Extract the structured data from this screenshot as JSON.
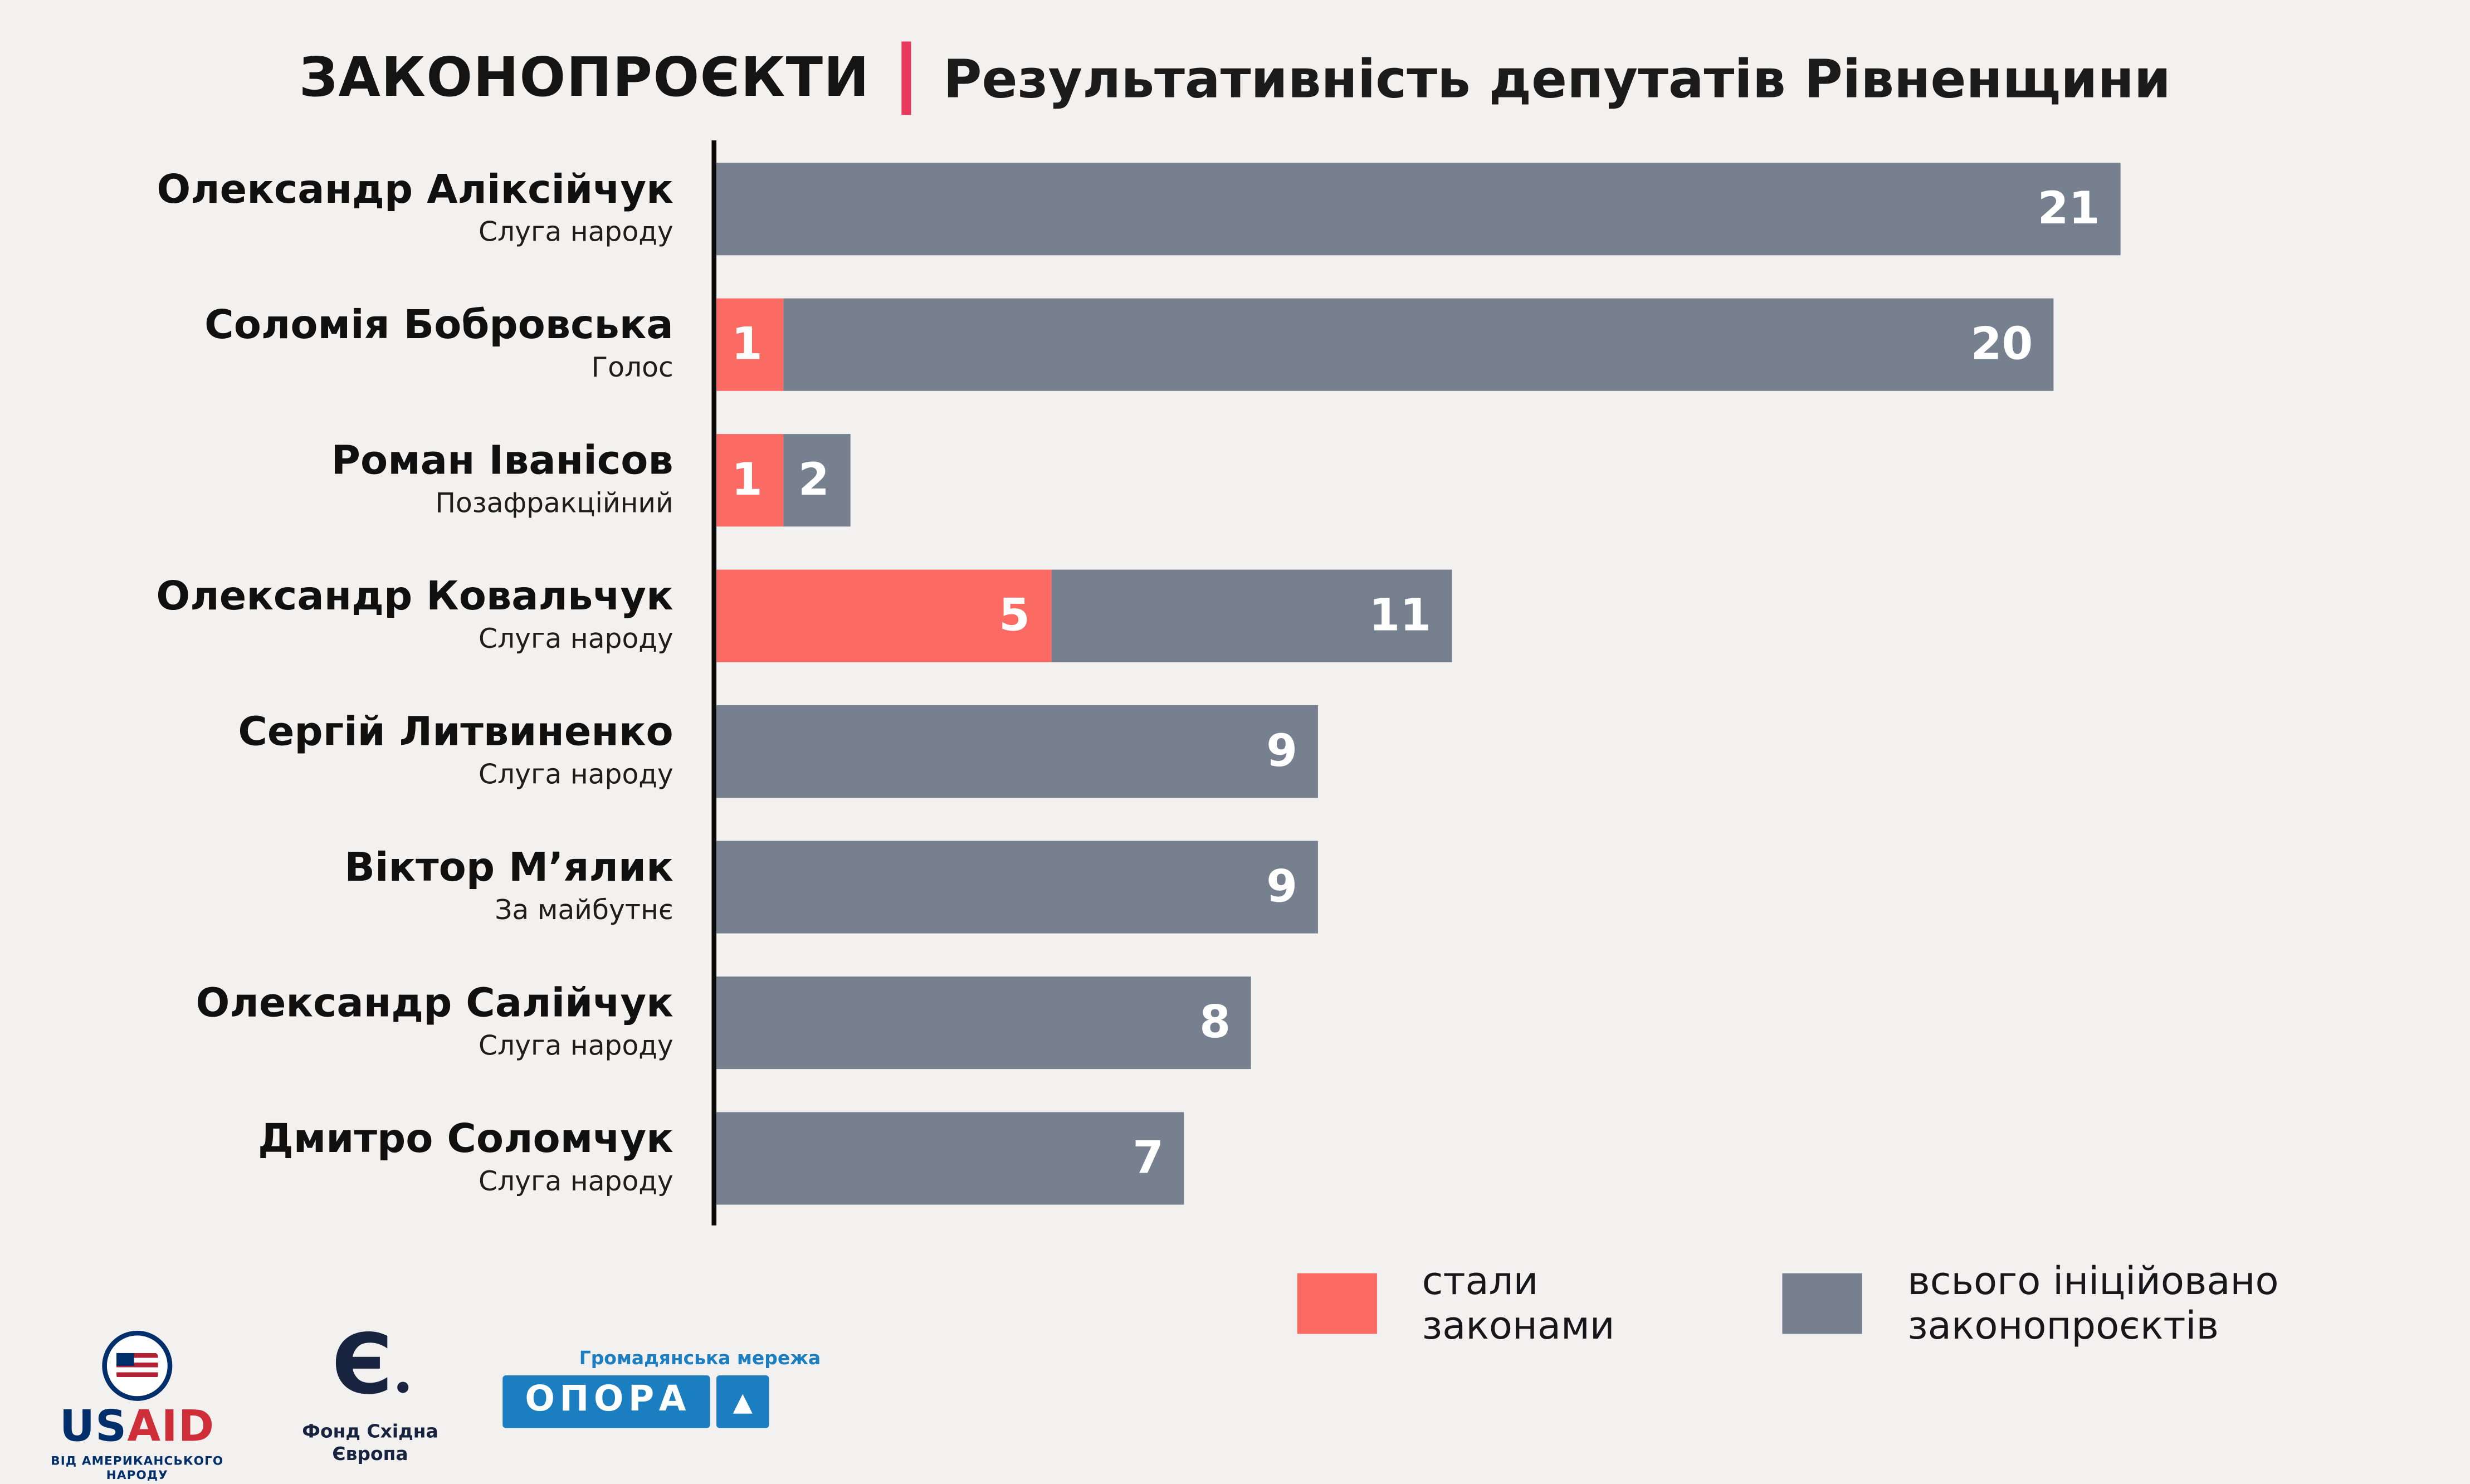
{
  "header": {
    "title_left": "ЗАКОНОПРОЄКТИ",
    "title_right": "Результативність депутатів Рівненщини"
  },
  "chart_data": {
    "type": "bar",
    "orientation": "horizontal",
    "stacked": true,
    "title": "ЗАКОНОПРОЄКТИ | Результативність депутатів Рівненщини",
    "xlim": [
      0,
      21
    ],
    "grid": false,
    "legend_position": "bottom-right",
    "categories": [
      "Олександр Аліксійчук",
      "Соломія Бобровська",
      "Роман Іванісов",
      "Олександр Ковальчук",
      "Сергій Литвиненко",
      "Віктор М’ялик",
      "Олександр Салійчук",
      "Дмитро Соломчук"
    ],
    "series": [
      {
        "name": "стали законами",
        "values": [
          0,
          1,
          1,
          5,
          0,
          0,
          0,
          0
        ]
      },
      {
        "name": "всього ініційовано законопроєктів",
        "values": [
          21,
          20,
          2,
          11,
          9,
          9,
          8,
          7
        ]
      }
    ],
    "rows": [
      {
        "name": "Олександр Аліксійчук",
        "party": "Слуга народу",
        "laws": 0,
        "total": 21
      },
      {
        "name": "Соломія Бобровська",
        "party": "Голос",
        "laws": 1,
        "total": 20
      },
      {
        "name": "Роман Іванісов",
        "party": "Позафракційний",
        "laws": 1,
        "total": 2
      },
      {
        "name": "Олександр Ковальчук",
        "party": "Слуга народу",
        "laws": 5,
        "total": 11
      },
      {
        "name": "Сергій Литвиненко",
        "party": "Слуга народу",
        "laws": 0,
        "total": 9
      },
      {
        "name": "Віктор М’ялик",
        "party": "За майбутнє",
        "laws": 0,
        "total": 9
      },
      {
        "name": "Олександр Салійчук",
        "party": "Слуга народу",
        "laws": 0,
        "total": 8
      },
      {
        "name": "Дмитро Соломчук",
        "party": "Слуга народу",
        "laws": 0,
        "total": 7
      }
    ],
    "series_colors": {
      "laws": "#fb6a63",
      "total": "#76808f"
    },
    "legend": [
      {
        "label": "стали законами",
        "color": "#fb6a63"
      },
      {
        "label": "всього ініційовано законопроєктів",
        "color": "#76808f"
      }
    ]
  },
  "footer": {
    "usaid": {
      "text_us": "US",
      "text_aid": "AID",
      "tagline": "ВІД АМЕРИКАНСЬКОГО НАРОДУ"
    },
    "fse": {
      "glyph": "Є",
      "label": "Фонд Східна Європа"
    },
    "opora": {
      "tagline": "Громадянська мережа",
      "text": "ОПОРА",
      "triangle_icon": "▲"
    }
  },
  "colors": {
    "background": "#f2f1ef",
    "bar_gray": "#76808f",
    "bar_red": "#fb6a63",
    "divider": "#e93a5e",
    "opora_blue": "#1a7ec0",
    "usaid_navy": "#002f6c",
    "usaid_red": "#cf2e38"
  }
}
